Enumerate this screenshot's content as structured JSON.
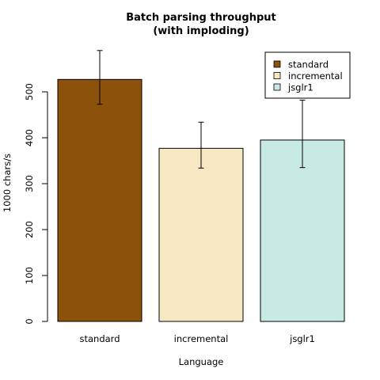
{
  "chart_data": {
    "type": "bar",
    "title": "Batch parsing throughput",
    "subtitle": "(with imploding)",
    "xlabel": "Language",
    "ylabel": "1000 chars/s",
    "ylim": [
      0,
      600
    ],
    "yticks": [
      0,
      100,
      200,
      300,
      400,
      500
    ],
    "categories": [
      "standard",
      "incremental",
      "jsglr1"
    ],
    "values": [
      527,
      377,
      395
    ],
    "error_bars": [
      {
        "low": 473,
        "high": 590
      },
      {
        "low": 334,
        "high": 434
      },
      {
        "low": 335,
        "high": 482
      }
    ],
    "colors": [
      "#8c510a",
      "#f6e8c3",
      "#c7eae5"
    ],
    "legend": {
      "position": "top-right",
      "entries": [
        "standard",
        "incremental",
        "jsglr1"
      ]
    },
    "grid": false
  }
}
